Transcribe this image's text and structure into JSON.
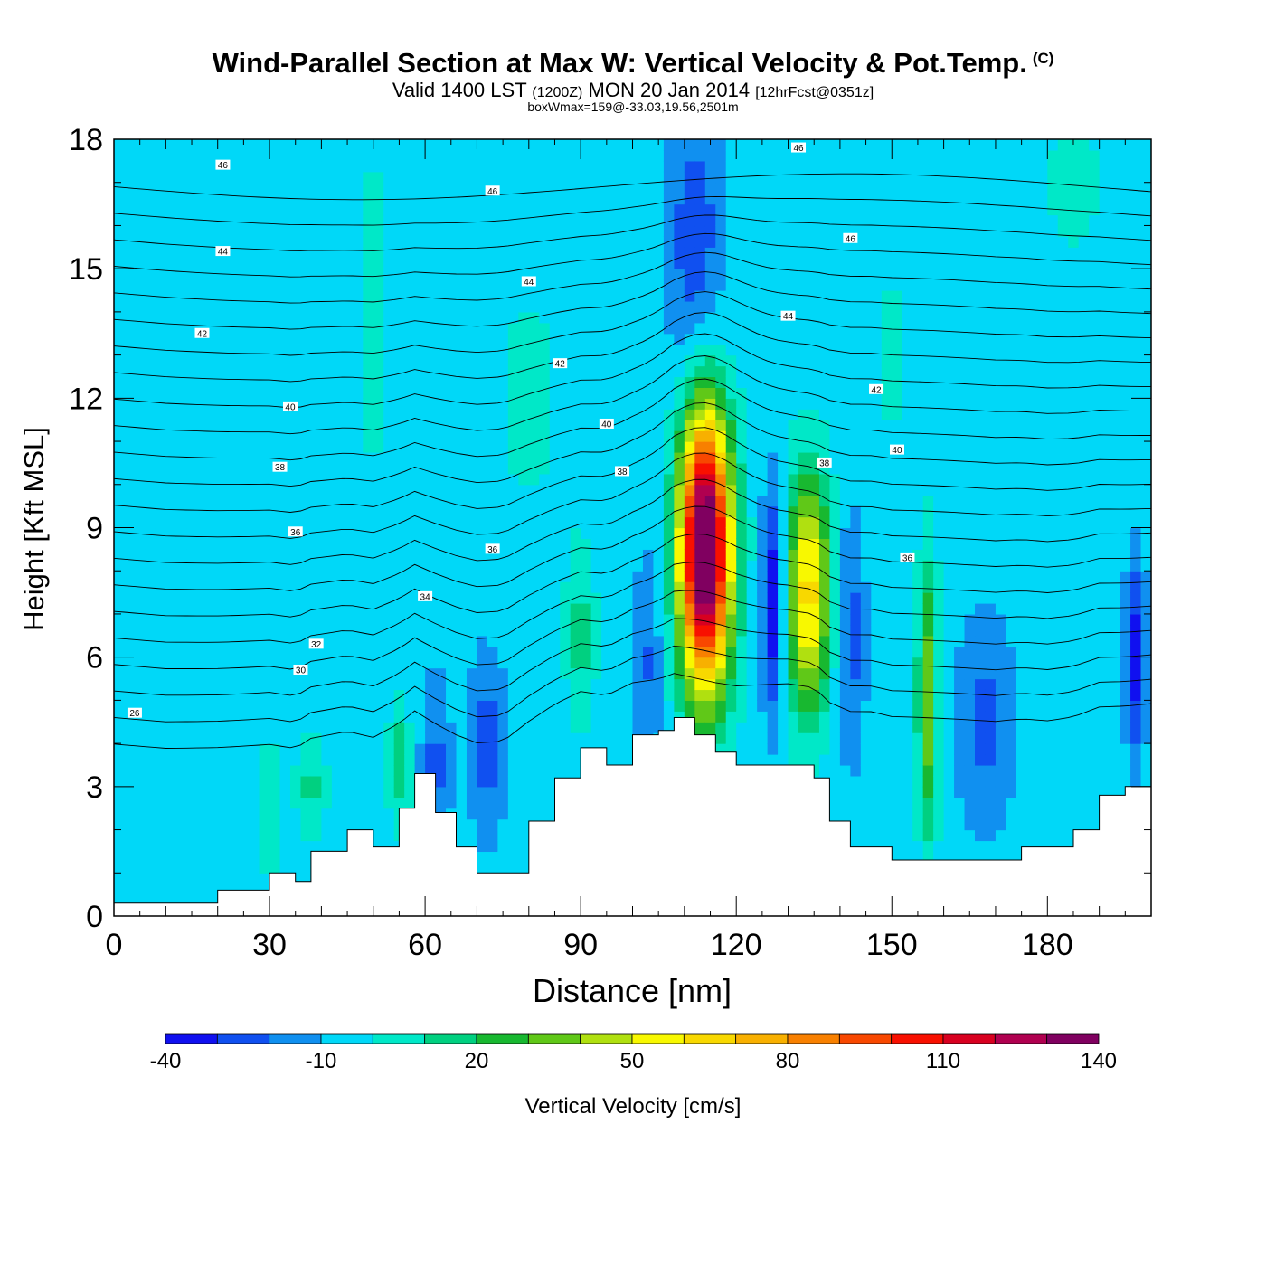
{
  "title": {
    "main": "Wind-Parallel Section at Max W: Vertical Velocity & Pot.Temp.",
    "copyright": "(C)",
    "valid_prefix": "Valid 1400 LST",
    "valid_utc": "(1200Z)",
    "valid_date": "MON 20 Jan 2014",
    "forecast": "[12hrFcst@0351z]",
    "box_info": "boxWmax=159@-33.03,19.56,2501m"
  },
  "colorbar": {
    "title": "Vertical Velocity [cm/s]",
    "min": -40,
    "step": 10,
    "colors": [
      "#1010f0",
      "#1050f0",
      "#1090f0",
      "#00d8f8",
      "#00e8c8",
      "#00d080",
      "#18b830",
      "#60c818",
      "#b0e010",
      "#f8f800",
      "#f8d800",
      "#f8b000",
      "#f88000",
      "#f84800",
      "#f81000",
      "#d80020",
      "#b00050",
      "#800060"
    ],
    "tick_values": [
      -40,
      -10,
      20,
      50,
      80,
      110,
      140
    ],
    "tick_labels": [
      "-40",
      "-10",
      "20",
      "50",
      "80",
      "110",
      "140"
    ]
  },
  "chart_data": {
    "type": "heatmap",
    "title": "Wind-Parallel Section at Max W: Vertical Velocity & Pot.Temp.",
    "xlabel": "Distance [nm]",
    "ylabel": "Height [Kft MSL]",
    "xlim": [
      0,
      200
    ],
    "ylim": [
      0,
      18
    ],
    "x_ticks": [
      0,
      30,
      60,
      90,
      120,
      150,
      180
    ],
    "x_tick_labels": [
      "0",
      "30",
      "60",
      "90",
      "120",
      "150",
      "180"
    ],
    "y_ticks": [
      0,
      3,
      6,
      9,
      12,
      15,
      18
    ],
    "y_tick_labels": [
      "0",
      "3",
      "6",
      "9",
      "12",
      "15",
      "18"
    ],
    "background_velocity": -5,
    "max_vertical_velocity": 159,
    "velocity_cells": [
      {
        "x": 114,
        "y": 8.5,
        "sx": 3.5,
        "sy": 2.3,
        "w": 160
      },
      {
        "x": 134,
        "y": 7.5,
        "sx": 3.0,
        "sy": 1.9,
        "w": 70
      },
      {
        "x": 157,
        "y": 5.0,
        "sx": 1.4,
        "sy": 2.2,
        "w": 45
      },
      {
        "x": 127,
        "y": 7.3,
        "sx": 1.5,
        "sy": 1.8,
        "w": -38
      },
      {
        "x": 112,
        "y": 15.5,
        "sx": 4.0,
        "sy": 2.5,
        "w": -22
      },
      {
        "x": 197,
        "y": 6.0,
        "sx": 1.4,
        "sy": 1.6,
        "w": -30
      },
      {
        "x": 168,
        "y": 4.5,
        "sx": 4.0,
        "sy": 1.8,
        "w": -18
      },
      {
        "x": 142,
        "y": 6.5,
        "sx": 2.0,
        "sy": 2.0,
        "w": -20
      },
      {
        "x": 72,
        "y": 4.0,
        "sx": 2.5,
        "sy": 1.5,
        "w": -20
      },
      {
        "x": 62,
        "y": 3.5,
        "sx": 2.0,
        "sy": 1.5,
        "w": -18
      },
      {
        "x": 103,
        "y": 6.0,
        "sx": 2.0,
        "sy": 1.8,
        "w": -16
      },
      {
        "x": 90,
        "y": 6.5,
        "sx": 2.0,
        "sy": 1.4,
        "w": 20
      },
      {
        "x": 55,
        "y": 3.5,
        "sx": 1.5,
        "sy": 1.0,
        "w": 22
      },
      {
        "x": 38,
        "y": 3.0,
        "sx": 2.0,
        "sy": 0.8,
        "w": 18
      },
      {
        "x": 30,
        "y": 2.5,
        "sx": 1.0,
        "sy": 1.2,
        "w": 16
      },
      {
        "x": 50,
        "y": 14.0,
        "sx": 3.0,
        "sy": 3.5,
        "w": 8
      },
      {
        "x": 80,
        "y": 12.0,
        "sx": 6.0,
        "sy": 2.5,
        "w": 7
      },
      {
        "x": 185,
        "y": 17.0,
        "sx": 5.0,
        "sy": 1.5,
        "w": 8
      },
      {
        "x": 150,
        "y": 13.0,
        "sx": 3.0,
        "sy": 3.0,
        "w": 6
      }
    ],
    "terrain": {
      "x": [
        0,
        10,
        20,
        30,
        35,
        38,
        45,
        50,
        55,
        58,
        62,
        66,
        70,
        75,
        80,
        85,
        90,
        95,
        100,
        105,
        108,
        112,
        116,
        120,
        125,
        130,
        135,
        138,
        142,
        146,
        150,
        155,
        160,
        165,
        170,
        175,
        180,
        185,
        190,
        195,
        200
      ],
      "height": [
        0.3,
        0.3,
        0.6,
        1.0,
        0.8,
        1.5,
        2.0,
        1.6,
        2.5,
        3.3,
        2.4,
        1.6,
        1.0,
        1.0,
        2.2,
        3.2,
        3.9,
        3.5,
        4.2,
        4.3,
        4.6,
        4.2,
        3.8,
        3.5,
        3.5,
        3.5,
        3.2,
        2.2,
        1.6,
        1.6,
        1.3,
        1.3,
        1.3,
        1.3,
        1.3,
        1.6,
        1.6,
        2.0,
        2.8,
        3.0,
        3.3
      ]
    },
    "theta_contours": {
      "levels": [
        26,
        27,
        28,
        29,
        30,
        31,
        32,
        33,
        34,
        35,
        36,
        37,
        38,
        39,
        40,
        41,
        42,
        43,
        44,
        45,
        46,
        47
      ],
      "labeled": [
        {
          "value": "26",
          "x": 4,
          "y": 4.7
        },
        {
          "value": "30",
          "x": 36,
          "y": 5.7
        },
        {
          "value": "32",
          "x": 39,
          "y": 6.3
        },
        {
          "value": "34",
          "x": 60,
          "y": 7.4
        },
        {
          "value": "36",
          "x": 35,
          "y": 8.9
        },
        {
          "value": "36",
          "x": 73,
          "y": 8.5
        },
        {
          "value": "36",
          "x": 153,
          "y": 8.3
        },
        {
          "value": "38",
          "x": 32,
          "y": 10.4
        },
        {
          "value": "38",
          "x": 98,
          "y": 10.3
        },
        {
          "value": "38",
          "x": 137,
          "y": 10.5
        },
        {
          "value": "40",
          "x": 34,
          "y": 11.8
        },
        {
          "value": "40",
          "x": 95,
          "y": 11.4
        },
        {
          "value": "40",
          "x": 151,
          "y": 10.8
        },
        {
          "value": "42",
          "x": 17,
          "y": 13.5
        },
        {
          "value": "42",
          "x": 86,
          "y": 12.8
        },
        {
          "value": "42",
          "x": 147,
          "y": 12.2
        },
        {
          "value": "44",
          "x": 21,
          "y": 15.4
        },
        {
          "value": "44",
          "x": 80,
          "y": 14.7
        },
        {
          "value": "44",
          "x": 130,
          "y": 13.9
        },
        {
          "value": "46",
          "x": 21,
          "y": 17.4
        },
        {
          "value": "46",
          "x": 73,
          "y": 16.8
        },
        {
          "value": "46",
          "x": 132,
          "y": 17.8
        },
        {
          "value": "46",
          "x": 142,
          "y": 15.7
        }
      ]
    },
    "legend": "colorbar-bottom"
  }
}
